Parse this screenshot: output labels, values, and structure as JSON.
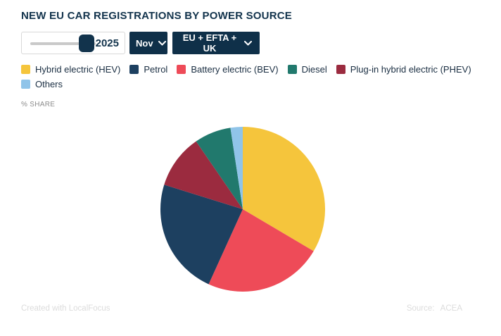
{
  "header": {
    "title": "NEW EU CAR REGISTRATIONS BY POWER SOURCE"
  },
  "controls": {
    "year_slider": {
      "value": "2025"
    },
    "month_dropdown": {
      "label": "Nov",
      "icon": "chevron-down"
    },
    "region_dropdown": {
      "label": "EU + EFTA + UK",
      "icon": "chevron-down"
    }
  },
  "unit_label": "% SHARE",
  "footer": {
    "created": "Created with LocalFocus",
    "source_label": "Source:",
    "source_value": "ACEA"
  },
  "colors": {
    "accent_navy": "#0F3049",
    "title_navy": "#12334C",
    "legend_text": "#1A2E42",
    "muted_gray": "#8C8C8C",
    "footer_gray": "#DCDCDC"
  },
  "chart_data": {
    "type": "pie",
    "title": "NEW EU CAR REGISTRATIONS BY POWER SOURCE",
    "unit": "% share",
    "legend_position": "top-left",
    "start_angle_deg": 0,
    "direction": "clockwise",
    "legend_order": [
      "Hybrid electric (HEV)",
      "Petrol",
      "Battery electric (BEV)",
      "Diesel",
      "Plug-in hybrid electric (PHEV)",
      "Others"
    ],
    "slices": [
      {
        "label": "Hybrid electric (HEV)",
        "value": 33.5,
        "color": "#F5C53C"
      },
      {
        "label": "Battery electric (BEV)",
        "value": 23.3,
        "color": "#EE4B58"
      },
      {
        "label": "Petrol",
        "value": 23.0,
        "color": "#1D4060"
      },
      {
        "label": "Plug-in hybrid electric (PHEV)",
        "value": 10.6,
        "color": "#9B2B3F"
      },
      {
        "label": "Diesel",
        "value": 7.2,
        "color": "#21796D"
      },
      {
        "label": "Others",
        "value": 2.4,
        "color": "#90C4E9"
      }
    ]
  }
}
